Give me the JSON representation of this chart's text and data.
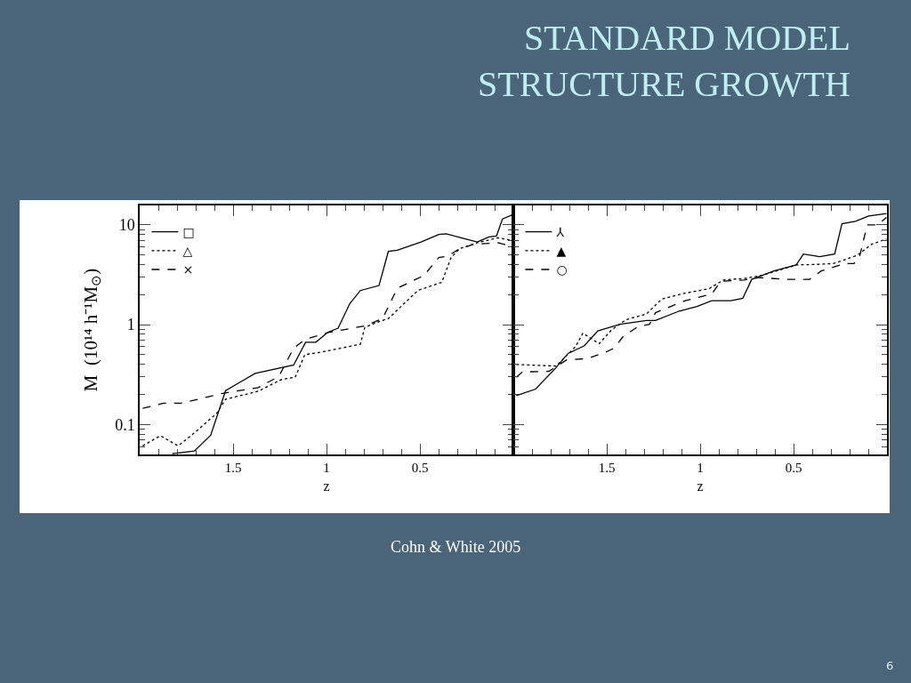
{
  "chart_data": [
    {
      "type": "line",
      "ylabel": "M  (10¹⁴ h⁻¹M$_{⊙}$)",
      "xlabel": "z",
      "log": "y",
      "xlim": [
        2,
        0
      ],
      "xticks": [
        1.5,
        1,
        0.5
      ],
      "ylim": [
        0.05,
        15.7
      ],
      "yticks": [
        0.1,
        1,
        10
      ],
      "legend": "top left",
      "series": [
        {
          "name": "□",
          "color": "#000000",
          "line_style": "solid",
          "x": [
            1.826,
            1.707,
            1.62,
            1.54,
            1.469,
            1.382,
            1.176,
            1.112,
            1.057,
            0.994,
            0.938,
            0.875,
            0.819,
            0.719,
            0.669,
            0.621,
            0.494,
            0.399,
            0.36,
            0.28,
            0.193,
            0.13,
            0.09,
            0.058,
            0.003
          ],
          "values": [
            0.051,
            0.054,
            0.078,
            0.218,
            0.261,
            0.325,
            0.394,
            0.667,
            0.667,
            0.838,
            0.921,
            1.63,
            2.2,
            2.47,
            5.43,
            5.58,
            6.76,
            8.03,
            8.15,
            7.45,
            6.76,
            7.6,
            7.76,
            11.5,
            12.7
          ]
        },
        {
          "name": "△",
          "color": "#000000",
          "line_style": "dotted",
          "x": [
            1.984,
            1.889,
            1.794,
            1.715,
            1.588,
            1.54,
            1.366,
            1.239,
            1.168,
            1.116,
            1.017,
            0.819,
            0.795,
            0.716,
            0.669,
            0.605,
            0.51,
            0.383,
            0.333,
            0.288,
            0.193,
            0.082,
            0.003
          ],
          "values": [
            0.061,
            0.077,
            0.061,
            0.08,
            0.129,
            0.179,
            0.215,
            0.283,
            0.297,
            0.5,
            0.536,
            0.637,
            0.94,
            1.08,
            1.15,
            1.5,
            2.21,
            2.66,
            4.71,
            5.78,
            6.63,
            7.45,
            6.95
          ]
        },
        {
          "name": "×",
          "color": "#000000",
          "line_style": "dashed",
          "x": [
            1.984,
            1.873,
            1.778,
            1.556,
            1.366,
            1.255,
            1.176,
            1.112,
            0.986,
            0.795,
            0.7,
            0.621,
            0.478,
            0.399,
            0.352,
            0.288,
            0.209,
            0.082,
            0.003
          ],
          "values": [
            0.145,
            0.163,
            0.163,
            0.205,
            0.234,
            0.303,
            0.582,
            0.715,
            0.838,
            0.973,
            1.15,
            2.32,
            3.12,
            4.71,
            4.87,
            5.78,
            6.41,
            6.63,
            6.06
          ]
        }
      ]
    },
    {
      "type": "line",
      "title": "STANDARD MODEL\nSTRUCTURE GROWTH",
      "xlabel": "z",
      "log": "y",
      "xlim": [
        2,
        0
      ],
      "xticks": [
        1.5,
        1,
        0.5
      ],
      "ylim": [
        0.05,
        15.7
      ],
      "yticks": [
        0.1,
        1,
        10
      ],
      "tick_labels": "x",
      "legend": "top left",
      "annotations": [
        "Cohn & White 2005",
        "6"
      ],
      "series": [
        {
          "name": "⅄",
          "color": "#000000",
          "line_style": "solid",
          "x": [
            1.984,
            1.881,
            1.778,
            1.707,
            1.62,
            1.548,
            1.429,
            1.287,
            1.239,
            1.112,
            1.017,
            0.938,
            0.835,
            0.772,
            0.724,
            0.605,
            0.486,
            0.447,
            0.36,
            0.28,
            0.241,
            0.169,
            0.098,
            0.003
          ],
          "values": [
            0.194,
            0.226,
            0.36,
            0.515,
            0.615,
            0.866,
            1.01,
            1.1,
            1.1,
            1.37,
            1.52,
            1.74,
            1.74,
            1.84,
            2.85,
            3.46,
            3.97,
            5.11,
            4.81,
            5.11,
            10.3,
            10.9,
            12.3,
            13.0
          ]
        },
        {
          "name": "▲",
          "color": "#000000",
          "line_style": "dotted",
          "x": [
            1.984,
            1.77,
            1.667,
            1.628,
            1.54,
            1.477,
            1.398,
            1.287,
            1.207,
            1.081,
            0.954,
            0.875,
            0.764,
            0.669,
            0.486,
            0.383,
            0.288,
            0.161,
            0.082,
            0.003
          ],
          "values": [
            0.399,
            0.385,
            0.603,
            0.821,
            0.645,
            0.877,
            1.12,
            1.28,
            1.8,
            2.07,
            2.29,
            2.81,
            2.91,
            3.12,
            3.97,
            4.02,
            4.1,
            4.94,
            6.41,
            7.24
          ]
        },
        {
          "name": "○",
          "color": "#000000",
          "line_style": "dashed",
          "x": [
            1.984,
            1.952,
            1.81,
            1.715,
            1.604,
            1.509,
            1.461,
            1.414,
            1.334,
            1.271,
            1.239,
            1.081,
            0.938,
            0.89,
            0.764,
            0.684,
            0.542,
            0.415,
            0.352,
            0.225,
            0.177,
            0.146,
            0.106,
            0.05,
            0.003
          ],
          "values": [
            0.297,
            0.336,
            0.341,
            0.443,
            0.458,
            0.525,
            0.582,
            0.755,
            0.953,
            1.01,
            1.32,
            1.74,
            2.03,
            2.72,
            2.81,
            2.97,
            2.85,
            2.85,
            3.46,
            4.1,
            4.1,
            4.87,
            10.0,
            10.0,
            11.9
          ]
        }
      ]
    }
  ]
}
